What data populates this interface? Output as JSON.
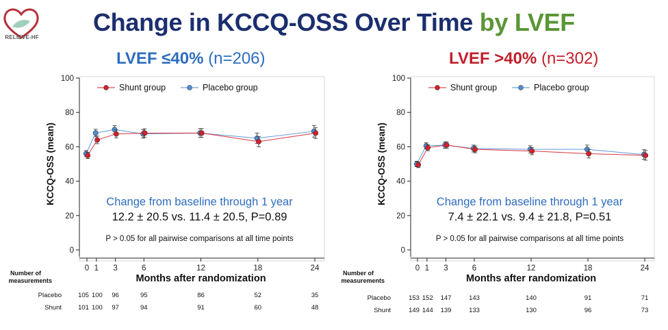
{
  "header": {
    "title_main": "Change in KCCQ-OSS Over Time",
    "title_accent": "by LVEF",
    "logo_text": "RELIEVE-HF"
  },
  "colors": {
    "title": "#1b2e6e",
    "accent": "#5a9636",
    "left_panel": "#2e6dbf",
    "right_panel": "#c0202c",
    "shunt": "#d81e2a",
    "placebo": "#4d8ed6"
  },
  "panels": [
    {
      "title_bold": "LVEF ≤40%",
      "title_n": "(n=206)",
      "change_label": "Change from baseline through 1 year",
      "change_values": "12.2 ± 20.5 vs. 11.4 ± 20.5, P=0.89",
      "note": "P > 0.05 for all pairwise comparisons at all time points",
      "counts_header": [
        "Number of",
        "measurements"
      ],
      "placebo_counts": [
        "105",
        "100",
        "96",
        "95",
        "86",
        "52",
        "35"
      ],
      "shunt_counts": [
        "101",
        "100",
        "97",
        "94",
        "91",
        "60",
        "48"
      ]
    },
    {
      "title_bold": "LVEF >40%",
      "title_n": "(n=302)",
      "change_label": "Change from baseline through 1 year",
      "change_values": "7.4 ± 22.1 vs. 9.4 ± 21.8, P=0.51",
      "note": "P > 0.05 for all pairwise comparisons at all time points",
      "counts_header": [
        "Number of",
        "measurements"
      ],
      "placebo_counts": [
        "153",
        "152",
        "147",
        "143",
        "140",
        "91",
        "71"
      ],
      "shunt_counts": [
        "149",
        "144",
        "139",
        "133",
        "130",
        "96",
        "73"
      ]
    }
  ],
  "chart_data": [
    {
      "type": "line",
      "title": "LVEF ≤40% (n=206)",
      "xlabel": "Months after randomization",
      "ylabel": "KCCQ-OSS (mean)",
      "x": [
        0,
        1,
        3,
        6,
        12,
        18,
        24
      ],
      "xticks": [
        0,
        1,
        3,
        6,
        12,
        18,
        24
      ],
      "yticks": [
        0,
        20,
        40,
        60,
        80,
        100
      ],
      "ylim": [
        0,
        100
      ],
      "row_labels": [
        "Placebo",
        "Shunt"
      ],
      "series": [
        {
          "name": "Shunt group",
          "values": [
            55,
            64,
            67.5,
            68,
            68,
            63,
            68
          ],
          "err": [
            1.8,
            2.2,
            2.3,
            2.5,
            2.6,
            3.0,
            3.2
          ]
        },
        {
          "name": "Placebo group",
          "values": [
            56,
            68,
            70,
            67.5,
            68,
            65,
            69
          ],
          "err": [
            1.8,
            2.2,
            2.3,
            2.5,
            2.6,
            3.0,
            3.4
          ]
        }
      ]
    },
    {
      "type": "line",
      "title": "LVEF >40% (n=302)",
      "xlabel": "Months after randomization",
      "ylabel": "KCCQ-OSS (mean)",
      "x": [
        0,
        1,
        3,
        6,
        12,
        18,
        24
      ],
      "xticks": [
        0,
        1,
        3,
        6,
        12,
        18,
        24
      ],
      "yticks": [
        0,
        20,
        40,
        60,
        80,
        100
      ],
      "ylim": [
        0,
        100
      ],
      "row_labels": [
        "Placebo",
        "Shunt"
      ],
      "series": [
        {
          "name": "Shunt group",
          "values": [
            49.5,
            59.5,
            61,
            58.5,
            57.5,
            56,
            55
          ],
          "err": [
            1.6,
            1.8,
            1.9,
            2.0,
            2.1,
            2.5,
            2.8
          ]
        },
        {
          "name": "Placebo group",
          "values": [
            50,
            60.5,
            61,
            59,
            58.5,
            58.5,
            55.5
          ],
          "err": [
            1.6,
            1.8,
            1.9,
            2.0,
            2.1,
            2.5,
            2.8
          ]
        }
      ]
    }
  ]
}
